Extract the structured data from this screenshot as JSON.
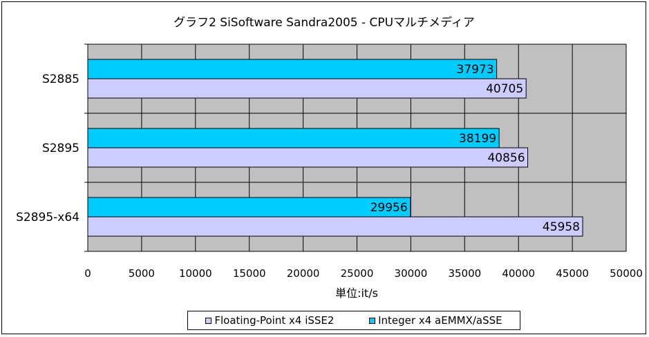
{
  "chart_data": {
    "type": "bar",
    "orientation": "horizontal",
    "title": "グラフ2 SiSoftware Sandra2005 - CPUマルチメディア",
    "xlabel": "単位:it/s",
    "ylabel": "",
    "categories": [
      "S2885",
      "S2895",
      "S2895-x64"
    ],
    "series": [
      {
        "name": "Integer x4 aEMMX/aSSE",
        "color": "#00ccff",
        "values": [
          37973,
          38199,
          29956
        ]
      },
      {
        "name": "Floating-Point x4 iSSE2",
        "color": "#ccccff",
        "values": [
          40705,
          40856,
          45958
        ]
      }
    ],
    "xlim": [
      0,
      50000
    ],
    "xticks": [
      0,
      5000,
      10000,
      15000,
      20000,
      25000,
      30000,
      35000,
      40000,
      45000,
      50000
    ],
    "grid": true,
    "plot_background": "#c0c0c0",
    "data_labels": true,
    "legend_position": "bottom",
    "legend_order": [
      "Floating-Point x4 iSSE2",
      "Integer x4 aEMMX/aSSE"
    ]
  }
}
